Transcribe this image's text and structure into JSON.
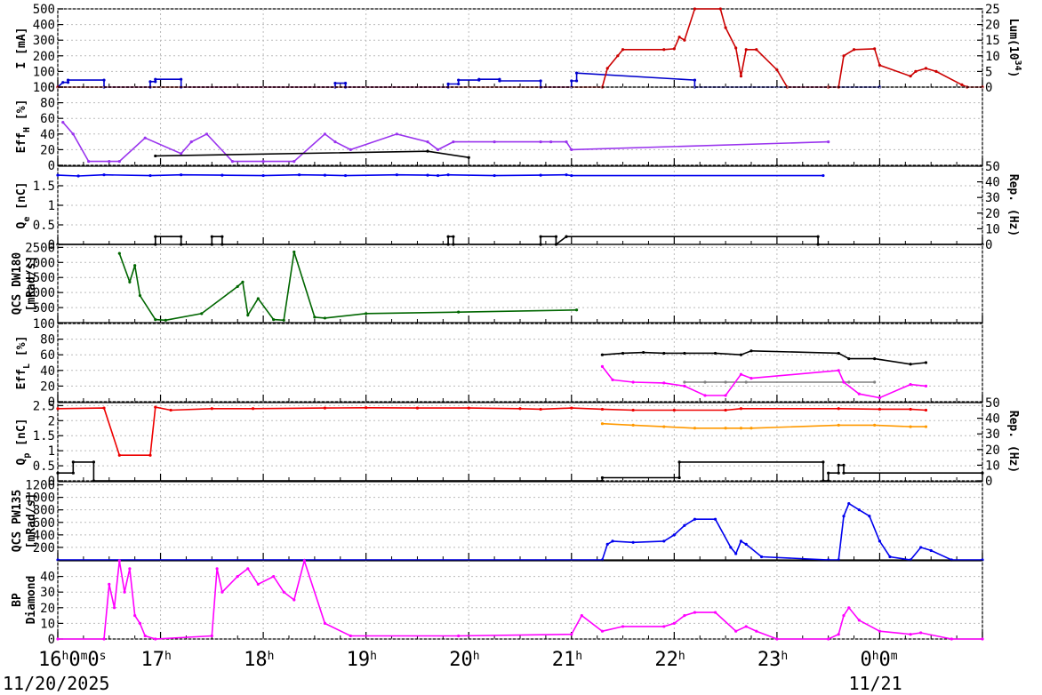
{
  "chart_data": {
    "type": "line",
    "x_range": [
      "16:00",
      "01:00"
    ],
    "time_ticks": [
      {
        "label": "16h0m0s",
        "hour": 16
      },
      {
        "label": "17h",
        "hour": 17
      },
      {
        "label": "18h",
        "hour": 18
      },
      {
        "label": "19h",
        "hour": 19
      },
      {
        "label": "20h",
        "hour": 20
      },
      {
        "label": "21h",
        "hour": 21
      },
      {
        "label": "22h",
        "hour": 22
      },
      {
        "label": "23h",
        "hour": 23
      },
      {
        "label": "0h0m",
        "hour": 24
      }
    ],
    "dates": [
      {
        "label": "11/20/2025",
        "hour": 16
      },
      {
        "label": "11/21",
        "hour": 24
      }
    ],
    "grid": true,
    "panels": [
      {
        "id": "current",
        "ylabel": "I [mA]",
        "ylim": [
          0,
          500
        ],
        "yticks": [
          0,
          100,
          200,
          300,
          400,
          500
        ],
        "ylabel_right": "Lum(10^34)",
        "ylim_right": [
          0,
          25
        ],
        "yticks_right": [
          0,
          5,
          10,
          15,
          20,
          25
        ],
        "series": [
          {
            "color": "#0000cc",
            "axis": "left",
            "x": [
              16.0,
              16.05,
              16.1,
              16.1,
              16.45,
              16.45,
              16.9,
              16.9,
              16.95,
              16.95,
              17.2,
              17.2,
              18.7,
              18.7,
              18.8,
              18.8,
              19.8,
              19.8,
              19.9,
              19.9,
              20.1,
              20.1,
              20.3,
              20.3,
              20.7,
              20.7,
              21.0,
              21.0,
              21.05,
              21.05,
              22.2,
              22.2,
              24.0
            ],
            "y": [
              0,
              30,
              30,
              45,
              45,
              0,
              0,
              35,
              35,
              50,
              50,
              0,
              0,
              25,
              25,
              0,
              0,
              20,
              20,
              45,
              45,
              50,
              50,
              40,
              40,
              0,
              0,
              40,
              40,
              90,
              45,
              0,
              0
            ]
          },
          {
            "color": "#cc0000",
            "axis": "left",
            "x": [
              16.0,
              21.3,
              21.35,
              21.45,
              21.5,
              21.9,
              22.0,
              22.05,
              22.1,
              22.2,
              22.45,
              22.5,
              22.6,
              22.65,
              22.7,
              22.8,
              23.0,
              23.1,
              23.5,
              23.6,
              23.65,
              23.75,
              23.95,
              24.0,
              24.3,
              24.35,
              24.45,
              24.55,
              24.8,
              24.85,
              25.0
            ],
            "y": [
              0,
              0,
              120,
              200,
              240,
              240,
              245,
              320,
              300,
              500,
              500,
              380,
              250,
              70,
              240,
              240,
              110,
              0,
              0,
              0,
              200,
              240,
              245,
              140,
              70,
              100,
              120,
              100,
              15,
              0,
              0
            ]
          }
        ]
      },
      {
        "id": "effh",
        "ylabel": "Eff_H [%]",
        "ylim": [
          0,
          100
        ],
        "yticks": [
          0,
          20,
          40,
          60,
          80,
          100
        ],
        "series": [
          {
            "color": "#9933ee",
            "name": "",
            "x": [
              16.05,
              16.15,
              16.3,
              16.5,
              16.6,
              16.85,
              17.2,
              17.3,
              17.45,
              17.7,
              18.0,
              18.3,
              18.6,
              18.7,
              18.85,
              19.3,
              19.6,
              19.7,
              19.85,
              20.25,
              20.7,
              20.8,
              20.95,
              21.0,
              23.5
            ],
            "y": [
              55,
              40,
              5,
              5,
              5,
              35,
              15,
              30,
              40,
              5,
              5,
              5,
              40,
              30,
              20,
              40,
              30,
              20,
              30,
              30,
              30,
              30,
              30,
              20,
              30
            ]
          },
          {
            "color": "#000000",
            "x": [
              16.95,
              19.6,
              20.0
            ],
            "y": [
              12,
              18,
              10
            ]
          }
        ]
      },
      {
        "id": "qe",
        "ylabel": "Q_e [nC]",
        "ylim": [
          0,
          2
        ],
        "yticks": [
          0,
          0.5,
          1,
          1.5
        ],
        "ylabel_right": "Rep. (Hz)",
        "ylim_right": [
          0,
          50
        ],
        "yticks_right": [
          0,
          10,
          20,
          30,
          40,
          50
        ],
        "series": [
          {
            "color": "#0000ee",
            "name": "",
            "x": [
              16.0,
              16.2,
              16.45,
              16.9,
              17.2,
              17.6,
              18.0,
              18.35,
              18.6,
              18.8,
              19.3,
              19.6,
              19.7,
              19.8,
              20.25,
              20.7,
              20.95,
              21.0,
              23.45
            ],
            "y": [
              1.77,
              1.75,
              1.78,
              1.76,
              1.78,
              1.77,
              1.76,
              1.78,
              1.77,
              1.76,
              1.78,
              1.77,
              1.76,
              1.78,
              1.76,
              1.77,
              1.78,
              1.76,
              1.76
            ]
          },
          {
            "color": "#000000",
            "axis": "right",
            "x": [
              16.0,
              16.95,
              16.95,
              17.2,
              17.2,
              17.5,
              17.5,
              17.6,
              17.6,
              19.8,
              19.8,
              19.85,
              19.85,
              20.7,
              20.7,
              20.85,
              20.85,
              20.95,
              20.95,
              23.4,
              23.4,
              25.0
            ],
            "y": [
              0,
              0,
              5,
              5,
              0,
              0,
              5,
              5,
              0,
              0,
              5,
              5,
              0,
              0,
              5,
              5,
              0,
              5,
              5,
              5,
              0,
              0
            ]
          }
        ]
      },
      {
        "id": "dw",
        "ylabel": "QCS DW180 [mRad/s]",
        "ylim": [
          0,
          2600
        ],
        "yticks": [
          500,
          1000,
          1500,
          2000,
          2500
        ],
        "series": [
          {
            "color": "#006600",
            "name": "",
            "x": [
              16.6,
              16.7,
              16.75,
              16.8,
              16.95,
              17.05,
              17.4,
              17.75,
              17.8,
              17.85,
              17.95,
              18.1,
              18.2,
              18.3,
              18.5,
              18.6,
              19.0,
              19.9,
              21.05
            ],
            "y": [
              2300,
              1350,
              1900,
              900,
              100,
              80,
              300,
              1200,
              1350,
              250,
              800,
              100,
              80,
              2350,
              180,
              150,
              300,
              350,
              420
            ]
          }
        ]
      },
      {
        "id": "effl",
        "ylabel": "Eff_L [%]",
        "ylim": [
          0,
          100
        ],
        "yticks": [
          0,
          20,
          40,
          60,
          80,
          100
        ],
        "series": [
          {
            "color": "#000000",
            "x": [
              21.3,
              21.5,
              21.7,
              21.9,
              22.1,
              22.4,
              22.65,
              22.75,
              23.6,
              23.7,
              23.95,
              24.3,
              24.45
            ],
            "y": [
              60,
              62,
              63,
              62,
              62,
              62,
              60,
              65,
              62,
              55,
              55,
              48,
              50
            ]
          },
          {
            "color": "#808080",
            "x": [
              22.1,
              22.3,
              22.5,
              22.7,
              23.7,
              23.95
            ],
            "y": [
              25,
              25,
              25,
              25,
              25,
              25
            ]
          },
          {
            "color": "#ff00ff",
            "x": [
              21.3,
              21.4,
              21.6,
              21.9,
              22.1,
              22.3,
              22.5,
              22.65,
              22.75,
              23.6,
              23.65,
              23.8,
              24.0,
              24.3,
              24.45
            ],
            "y": [
              45,
              28,
              25,
              24,
              20,
              8,
              8,
              35,
              30,
              40,
              25,
              10,
              5,
              22,
              20
            ]
          }
        ]
      },
      {
        "id": "qp",
        "ylabel": "Q_p [nC]",
        "ylim": [
          0,
          2.6
        ],
        "yticks": [
          0,
          0.5,
          1,
          1.5,
          2,
          2.5
        ],
        "ylabel_right": "Rep. (Hz)",
        "ylim_right": [
          0,
          50
        ],
        "yticks_right": [
          0,
          10,
          20,
          30,
          40,
          50
        ],
        "series": [
          {
            "color": "#ee0000",
            "name": "",
            "x": [
              16.0,
              16.45,
              16.6,
              16.9,
              16.95,
              17.1,
              17.5,
              17.9,
              18.6,
              19.0,
              19.5,
              20.0,
              20.5,
              20.7,
              21.0,
              21.3,
              21.6,
              22.0,
              22.5,
              22.65,
              23.6,
              24.0,
              24.3,
              24.45
            ],
            "y": [
              2.4,
              2.42,
              0.85,
              0.85,
              2.45,
              2.35,
              2.4,
              2.4,
              2.42,
              2.43,
              2.42,
              2.42,
              2.4,
              2.38,
              2.42,
              2.38,
              2.35,
              2.35,
              2.35,
              2.4,
              2.4,
              2.38,
              2.38,
              2.35
            ]
          },
          {
            "color": "#ff9900",
            "x": [
              21.3,
              21.6,
              21.9,
              22.2,
              22.5,
              22.65,
              22.75,
              23.6,
              23.95,
              24.3,
              24.45
            ],
            "y": [
              1.9,
              1.85,
              1.8,
              1.75,
              1.75,
              1.75,
              1.75,
              1.85,
              1.85,
              1.8,
              1.8
            ]
          },
          {
            "color": "#000000",
            "axis": "right",
            "x": [
              16.0,
              16.15,
              16.15,
              16.35,
              16.35,
              21.3,
              21.3,
              22.05,
              22.05,
              23.45,
              23.45,
              23.5,
              23.5,
              23.6,
              23.6,
              23.65,
              23.65,
              25.0
            ],
            "y": [
              5,
              5,
              12,
              12,
              0,
              0,
              2,
              2,
              12,
              12,
              0,
              0,
              5,
              5,
              10,
              10,
              5,
              5
            ]
          }
        ]
      },
      {
        "id": "pw",
        "ylabel": "QCS PW135 [mRad/s]",
        "ylim": [
          0,
          1250
        ],
        "yticks": [
          200,
          400,
          600,
          800,
          1000,
          1200
        ],
        "series": [
          {
            "color": "#0000ee",
            "name": "",
            "x": [
              16.0,
              21.3,
              21.35,
              21.4,
              21.6,
              21.9,
              22.0,
              22.1,
              22.2,
              22.4,
              22.55,
              22.6,
              22.65,
              22.7,
              22.85,
              23.5,
              23.6,
              23.65,
              23.7,
              23.8,
              23.9,
              24.0,
              24.1,
              24.3,
              24.4,
              24.5,
              24.7,
              25.0
            ],
            "y": [
              0,
              0,
              250,
              300,
              280,
              300,
              400,
              550,
              650,
              650,
              200,
              100,
              300,
              250,
              50,
              0,
              0,
              700,
              900,
              800,
              700,
              300,
              50,
              0,
              200,
              150,
              0,
              0
            ]
          }
        ]
      },
      {
        "id": "bp",
        "ylabel": "BP Diamond",
        "ylim": [
          0,
          50
        ],
        "yticks": [
          0,
          10,
          20,
          30,
          40
        ],
        "series": [
          {
            "color": "#ff00ff",
            "name": "",
            "x": [
              16.0,
              16.45,
              16.5,
              16.55,
              16.6,
              16.65,
              16.7,
              16.75,
              16.8,
              16.85,
              16.95,
              17.5,
              17.55,
              17.6,
              17.75,
              17.85,
              17.95,
              18.1,
              18.2,
              18.3,
              18.4,
              18.6,
              18.85,
              19.9,
              21.0,
              21.1,
              21.3,
              21.5,
              21.9,
              22.0,
              22.1,
              22.2,
              22.4,
              22.6,
              22.7,
              22.8,
              23.0,
              23.5,
              23.6,
              23.65,
              23.7,
              23.8,
              24.0,
              24.3,
              24.4,
              24.7,
              25.0
            ],
            "y": [
              0,
              0,
              35,
              20,
              50,
              30,
              45,
              15,
              10,
              2,
              0,
              2,
              45,
              30,
              40,
              45,
              35,
              40,
              30,
              25,
              50,
              10,
              2,
              2,
              3,
              15,
              5,
              8,
              8,
              10,
              15,
              17,
              17,
              5,
              8,
              5,
              0,
              0,
              3,
              15,
              20,
              12,
              5,
              3,
              4,
              0,
              0
            ]
          }
        ]
      }
    ]
  }
}
